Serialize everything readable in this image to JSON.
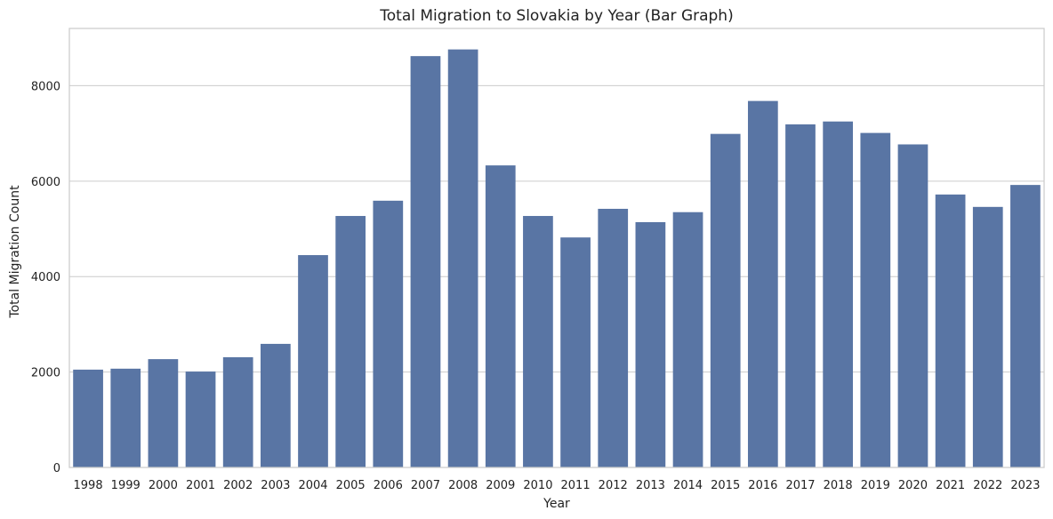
{
  "chart_data": {
    "type": "bar",
    "title": "Total Migration to Slovakia by Year (Bar Graph)",
    "xlabel": "Year",
    "ylabel": "Total Migration Count",
    "categories": [
      "1998",
      "1999",
      "2000",
      "2001",
      "2002",
      "2003",
      "2004",
      "2005",
      "2006",
      "2007",
      "2008",
      "2009",
      "2010",
      "2011",
      "2012",
      "2013",
      "2014",
      "2015",
      "2016",
      "2017",
      "2018",
      "2019",
      "2020",
      "2021",
      "2022",
      "2023"
    ],
    "values": [
      2050,
      2070,
      2270,
      2010,
      2310,
      2590,
      4450,
      5270,
      5590,
      8620,
      8760,
      6330,
      5270,
      4820,
      5420,
      5140,
      5350,
      6990,
      7680,
      7190,
      7250,
      7010,
      6770,
      5720,
      5460,
      5920
    ],
    "ylim": [
      0,
      9200
    ],
    "yticks": [
      0,
      2000,
      4000,
      6000,
      8000
    ],
    "ytick_labels": [
      "0",
      "2000",
      "4000",
      "6000",
      "8000"
    ],
    "grid": "horizontal",
    "bar_color": "#5975a4",
    "background": "#ffffff"
  }
}
